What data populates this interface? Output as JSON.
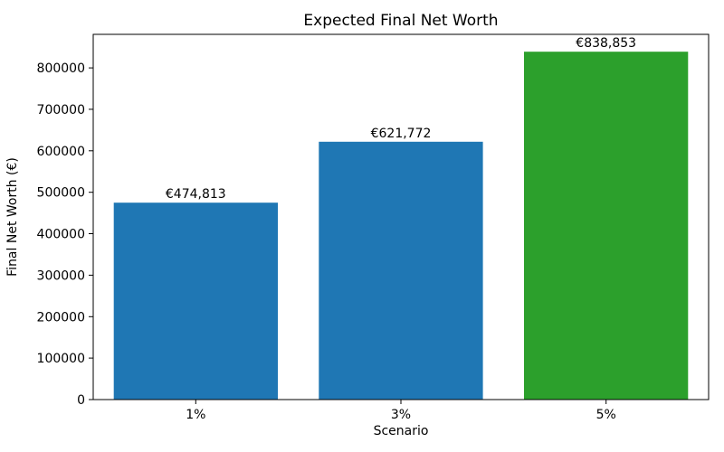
{
  "chart_data": {
    "type": "bar",
    "title": "Expected Final Net Worth",
    "xlabel": "Scenario",
    "ylabel": "Final Net Worth (€)",
    "categories": [
      "1%",
      "3%",
      "5%"
    ],
    "values": [
      474813,
      621772,
      838853
    ],
    "bar_value_labels": [
      "€474,813",
      "€621,772",
      "€838,853"
    ],
    "bar_colors": [
      "#1f77b4",
      "#1f77b4",
      "#2ca02c"
    ],
    "ylim": [
      0,
      880796
    ],
    "yticks": [
      0,
      100000,
      200000,
      300000,
      400000,
      500000,
      600000,
      700000,
      800000
    ],
    "grid": false,
    "legend_position": "none"
  }
}
